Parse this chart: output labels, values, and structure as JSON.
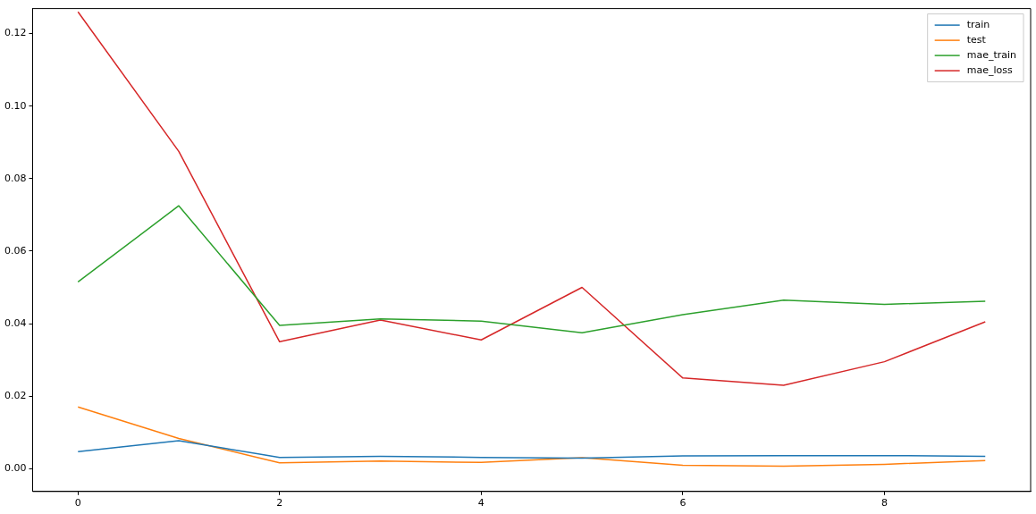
{
  "chart_data": {
    "type": "line",
    "x": [
      0,
      1,
      2,
      3,
      4,
      5,
      6,
      7,
      8,
      9
    ],
    "series": [
      {
        "name": "train",
        "color": "#1f77b4",
        "values": [
          0.0047,
          0.0077,
          0.0031,
          0.0034,
          0.0031,
          0.0029,
          0.0035,
          0.0036,
          0.0036,
          0.0034
        ]
      },
      {
        "name": "test",
        "color": "#ff7f0e",
        "values": [
          0.017,
          0.0083,
          0.0016,
          0.0021,
          0.0017,
          0.003,
          0.0009,
          0.0007,
          0.0012,
          0.0022
        ]
      },
      {
        "name": "mae_train",
        "color": "#2ca02c",
        "values": [
          0.0515,
          0.0725,
          0.0395,
          0.0413,
          0.0407,
          0.0375,
          0.0425,
          0.0465,
          0.0453,
          0.0462
        ]
      },
      {
        "name": "mae_loss",
        "color": "#d62728",
        "values": [
          0.126,
          0.0875,
          0.035,
          0.041,
          0.0355,
          0.05,
          0.025,
          0.023,
          0.0295,
          0.0405
        ]
      }
    ],
    "xlim": [
      -0.45,
      9.45
    ],
    "xticks": [
      0,
      2,
      4,
      6,
      8
    ],
    "ylim": [
      -0.0063,
      0.1269
    ],
    "yticks": [
      {
        "value": 0,
        "label": "0.00"
      },
      {
        "value": 0.02,
        "label": "0.02"
      },
      {
        "value": 0.04,
        "label": "0.04"
      },
      {
        "value": 0.06,
        "label": "0.06"
      },
      {
        "value": 0.08,
        "label": "0.08"
      },
      {
        "value": 0.1,
        "label": "0.10"
      },
      {
        "value": 0.12,
        "label": "0.12"
      }
    ],
    "grid": false,
    "legend": "top right",
    "marker": "none",
    "line_style": "solid"
  }
}
